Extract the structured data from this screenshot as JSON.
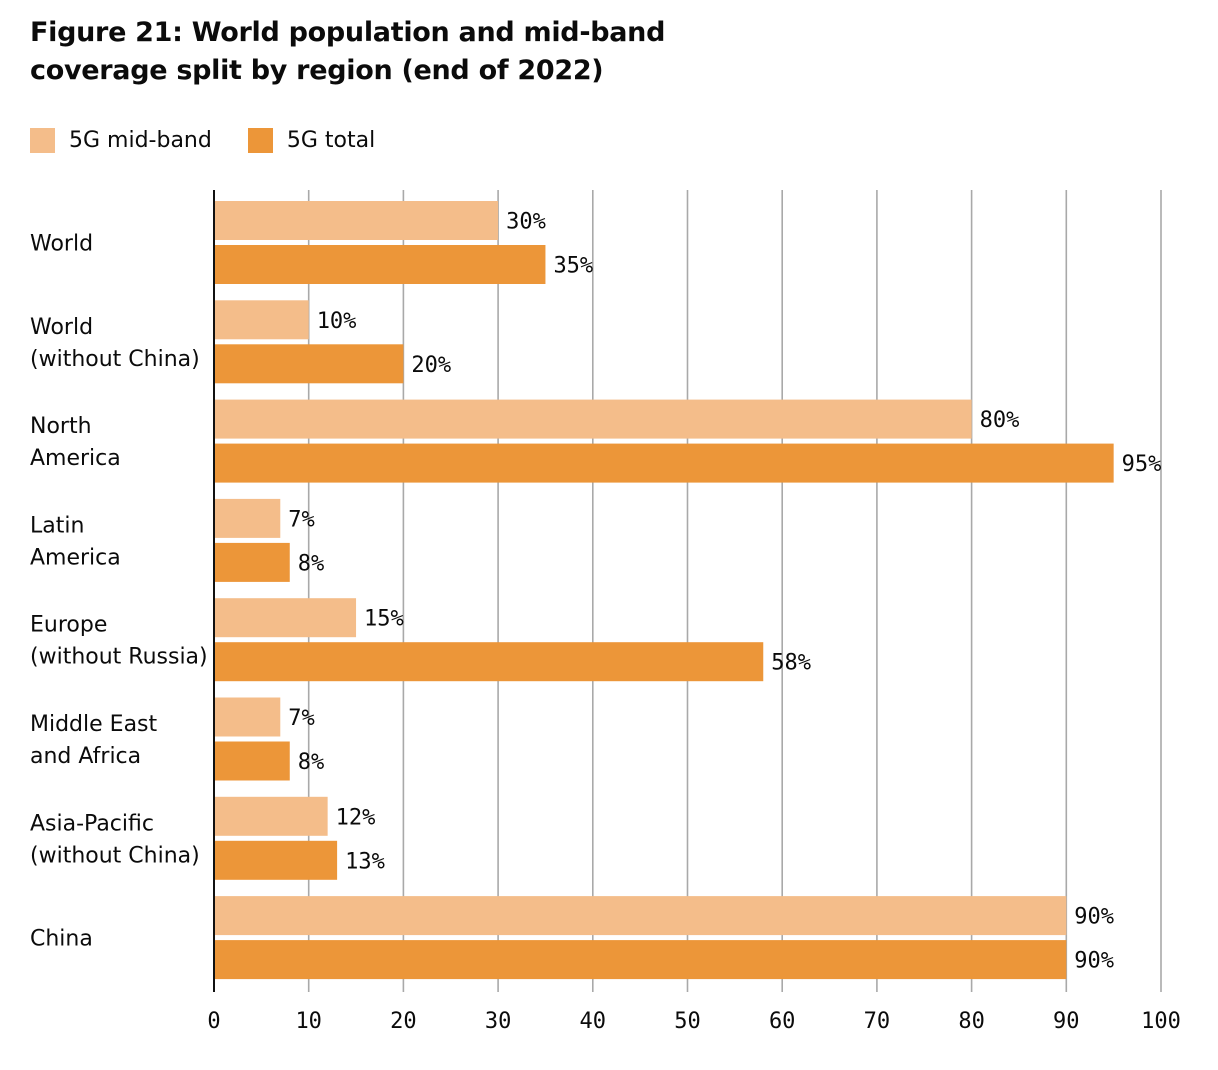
{
  "title_lines": [
    "Figure 21: World population and mid-band",
    "coverage split by region (end of 2022)"
  ],
  "colors": {
    "mid_band": "#f4bd8a",
    "total": "#ec9639",
    "grid": "#a9a9a9",
    "axis": "#111111"
  },
  "chart_data": {
    "type": "bar",
    "orientation": "horizontal",
    "title": "Figure 21: World population and mid-band coverage split by region (end of 2022)",
    "categories": [
      [
        "World"
      ],
      [
        "World",
        "(without China)"
      ],
      [
        "North",
        "America"
      ],
      [
        "Latin",
        "America"
      ],
      [
        "Europe",
        "(without Russia)"
      ],
      [
        "Middle East",
        "and Africa"
      ],
      [
        "Asia-Pacific",
        "(without China)"
      ],
      [
        "China"
      ]
    ],
    "series": [
      {
        "name": "5G mid-band",
        "values": [
          30,
          10,
          80,
          7,
          15,
          7,
          12,
          90
        ],
        "labels": [
          "30%",
          "10%",
          "80%",
          "7%",
          "15%",
          "7%",
          "12%",
          "90%"
        ]
      },
      {
        "name": "5G total",
        "values": [
          35,
          20,
          95,
          8,
          58,
          8,
          13,
          90
        ],
        "labels": [
          "35%",
          "20%",
          "95%",
          "8%",
          "58%",
          "8%",
          "13%",
          "90%"
        ]
      }
    ],
    "xlim": [
      0,
      100
    ],
    "xticks": [
      0,
      10,
      20,
      30,
      40,
      50,
      60,
      70,
      80,
      90,
      100
    ],
    "grid": true,
    "legend": "top-left"
  }
}
